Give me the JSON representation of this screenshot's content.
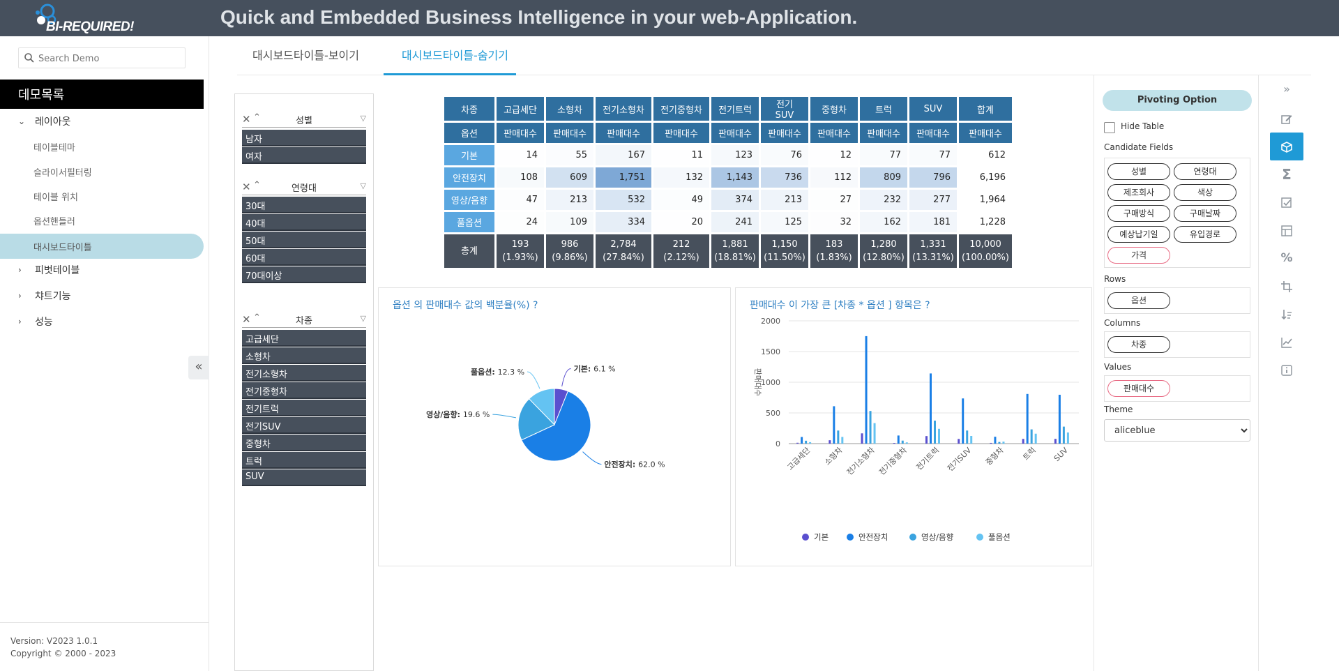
{
  "header": {
    "logo_text": "BI-REQUIRED!",
    "title": "Quick and Embedded Business Intelligence in your web-Application."
  },
  "sidebar": {
    "search_placeholder": "Search Demo",
    "menu_title": "데모목록",
    "groups": [
      {
        "label": "레이아웃",
        "expanded": true,
        "items": [
          "테이블테마",
          "슬라이서필터링",
          "테이블 위치",
          "옵션핸들러",
          "대시보드타이틀"
        ],
        "active": "대시보드타이틀"
      },
      {
        "label": "피벗테이블",
        "expanded": false
      },
      {
        "label": "챠트기능",
        "expanded": false
      },
      {
        "label": "성능",
        "expanded": false
      }
    ],
    "version": "Version: V2023 1.0.1",
    "copyright": "Copyright © 2000 - 2023"
  },
  "tabs": [
    {
      "label": "대시보드타이틀-보이기",
      "active": false
    },
    {
      "label": "대시보드타이틀-숨기기",
      "active": true
    }
  ],
  "filters": [
    {
      "title": "성별",
      "items": [
        "남자",
        "여자"
      ]
    },
    {
      "title": "연령대",
      "items": [
        "30대",
        "40대",
        "50대",
        "60대",
        "70대이상"
      ]
    },
    {
      "title": "차종",
      "items": [
        "고급세단",
        "소형차",
        "전기소형차",
        "전기중형차",
        "전기트럭",
        "전기SUV",
        "중형차",
        "트럭",
        "SUV"
      ]
    }
  ],
  "pivot": {
    "col_header_label": "차종",
    "row_header_label": "옵션",
    "value_label": "판매대수",
    "columns": [
      "고급세단",
      "소형차",
      "전기소형차",
      "전기중형차",
      "전기트럭",
      "전기SUV",
      "중형차",
      "트럭",
      "SUV",
      "합계"
    ],
    "rows": [
      {
        "label": "기본",
        "values": [
          "14",
          "55",
          "167",
          "11",
          "123",
          "76",
          "12",
          "77",
          "77",
          "612"
        ]
      },
      {
        "label": "안전장치",
        "values": [
          "108",
          "609",
          "1,751",
          "132",
          "1,143",
          "736",
          "112",
          "809",
          "796",
          "6,196"
        ]
      },
      {
        "label": "영상/음향",
        "values": [
          "47",
          "213",
          "532",
          "49",
          "374",
          "213",
          "27",
          "232",
          "277",
          "1,964"
        ]
      },
      {
        "label": "풀옵션",
        "values": [
          "24",
          "109",
          "334",
          "20",
          "241",
          "125",
          "32",
          "162",
          "181",
          "1,228"
        ]
      }
    ],
    "total_label": "총계",
    "totals": [
      {
        "value": "193",
        "pct": "(1.93%)"
      },
      {
        "value": "986",
        "pct": "(9.86%)"
      },
      {
        "value": "2,784",
        "pct": "(27.84%)"
      },
      {
        "value": "212",
        "pct": "(2.12%)"
      },
      {
        "value": "1,881",
        "pct": "(18.81%)"
      },
      {
        "value": "1,150",
        "pct": "(11.50%)"
      },
      {
        "value": "183",
        "pct": "(1.83%)"
      },
      {
        "value": "1,280",
        "pct": "(12.80%)"
      },
      {
        "value": "1,331",
        "pct": "(13.31%)"
      },
      {
        "value": "10,000",
        "pct": "(100.00%)"
      }
    ]
  },
  "chart_data": [
    {
      "type": "pie",
      "title": "옵션 의 판매대수 값의 백분율(%) ?",
      "labels": [
        "기본",
        "안전장치",
        "영상/음향",
        "풀옵션"
      ],
      "values": [
        6.1,
        62.0,
        19.6,
        12.3
      ],
      "label_texts": [
        "6.1 %",
        "62.0 %",
        "19.6 %",
        "12.3 %"
      ],
      "colors": [
        "#5a4fcf",
        "#1a7fe6",
        "#3aa3df",
        "#64c3f2"
      ]
    },
    {
      "type": "bar",
      "title": "판매대수 이 가장 큰 [차종 * 옵션 ] 항목은 ?",
      "ylabel": "판매대수",
      "ylim": [
        0,
        2000
      ],
      "yticks": [
        "0",
        "500",
        "1000",
        "1500",
        "2000"
      ],
      "categories": [
        "고급세단",
        "소형차",
        "전기소형차",
        "전기중형차",
        "전기트럭",
        "전기SUV",
        "중형차",
        "트럭",
        "SUV"
      ],
      "series": [
        {
          "name": "기본",
          "color": "#5a4fcf",
          "values": [
            14,
            55,
            167,
            11,
            123,
            76,
            12,
            77,
            77
          ]
        },
        {
          "name": "안전장치",
          "color": "#1a7fe6",
          "values": [
            108,
            609,
            1751,
            132,
            1143,
            736,
            112,
            809,
            796
          ]
        },
        {
          "name": "영상/음향",
          "color": "#3aa3df",
          "values": [
            47,
            213,
            532,
            49,
            374,
            213,
            27,
            232,
            277
          ]
        },
        {
          "name": "풀옵션",
          "color": "#64c3f2",
          "values": [
            24,
            109,
            334,
            20,
            241,
            125,
            32,
            162,
            181
          ]
        }
      ],
      "legend_position": "bottom"
    }
  ],
  "pivot_options": {
    "button_label": "Pivoting Option",
    "hide_table_label": "Hide Table",
    "candidate_label": "Candidate Fields",
    "candidate_fields": [
      {
        "label": "성별",
        "highlight": false
      },
      {
        "label": "연령대",
        "highlight": false
      },
      {
        "label": "제조회사",
        "highlight": false
      },
      {
        "label": "색상",
        "highlight": false
      },
      {
        "label": "구매방식",
        "highlight": false
      },
      {
        "label": "구매날짜",
        "highlight": false
      },
      {
        "label": "예상납기일",
        "highlight": false
      },
      {
        "label": "유입경로",
        "highlight": false
      },
      {
        "label": "가격",
        "highlight": true
      }
    ],
    "rows_label": "Rows",
    "rows_fields": [
      "옵션"
    ],
    "columns_label": "Columns",
    "columns_fields": [
      "차종"
    ],
    "values_label": "Values",
    "values_fields": [
      "판매대수"
    ],
    "theme_label": "Theme",
    "theme_value": "aliceblue"
  },
  "toolbar": {
    "icons": [
      "expand-icon",
      "edit-icon",
      "cube-icon",
      "sigma-icon",
      "checklist-icon",
      "layout-icon",
      "percent-icon",
      "crop-icon",
      "sort-icon",
      "chart-icon",
      "info-icon"
    ],
    "active": "cube-icon"
  }
}
